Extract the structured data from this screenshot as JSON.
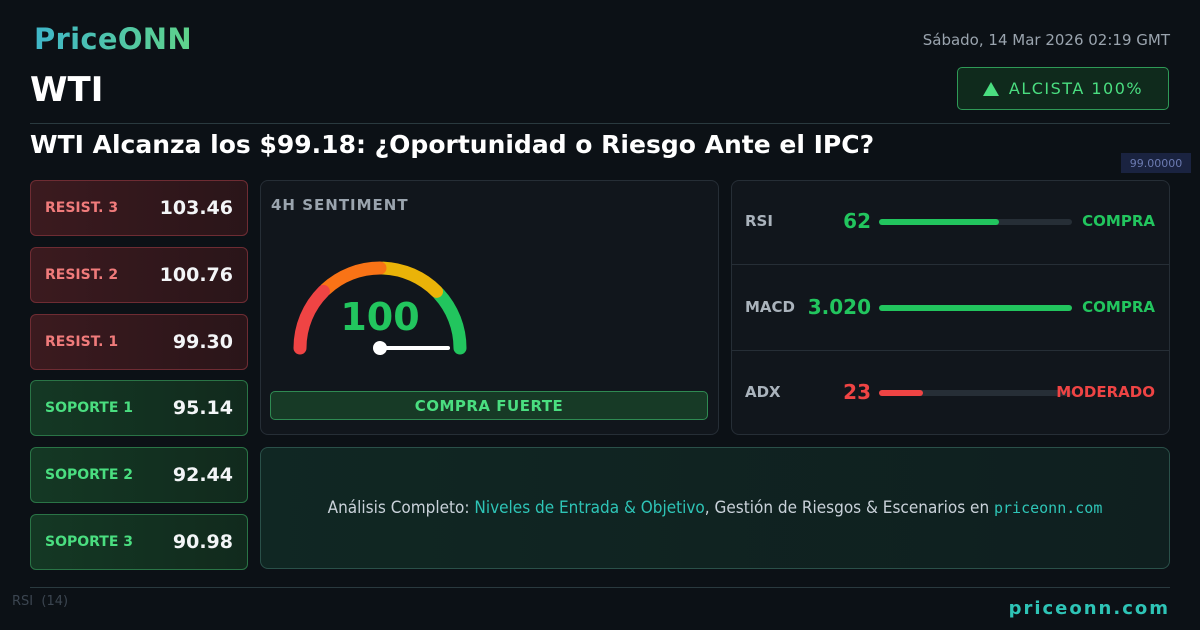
{
  "header": {
    "logo": "PriceONN",
    "datetime": "Sábado, 14 Mar 2026 02:19 GMT",
    "symbol": "WTI",
    "badge": "ALCISTA 100%"
  },
  "headline": "WTI Alcanza los $99.18: ¿Oportunidad o Riesgo Ante el IPC?",
  "background": {
    "price_tag": "99.00000",
    "rsi_label": "RSI",
    "rsi_period": "(14)"
  },
  "levels": [
    {
      "label": "RESIST. 3",
      "value": "103.46",
      "kind": "resistance"
    },
    {
      "label": "RESIST. 2",
      "value": "100.76",
      "kind": "resistance"
    },
    {
      "label": "RESIST. 1",
      "value": "99.30",
      "kind": "resistance"
    },
    {
      "label": "SOPORTE 1",
      "value": "95.14",
      "kind": "support"
    },
    {
      "label": "SOPORTE 2",
      "value": "92.44",
      "kind": "support"
    },
    {
      "label": "SOPORTE 3",
      "value": "90.98",
      "kind": "support"
    }
  ],
  "sentiment": {
    "title": "4H SENTIMENT",
    "value": 100,
    "range": [
      0,
      100
    ],
    "signal": "COMPRA FUERTE"
  },
  "indicators": {
    "range": [
      0,
      100
    ],
    "rows": [
      {
        "name": "RSI",
        "value": 62,
        "signal": "COMPRA",
        "color": "#22c55e"
      },
      {
        "name": "MACD",
        "value": "3.020",
        "signal": "COMPRA",
        "color": "#22c55e"
      },
      {
        "name": "ADX",
        "value": 23,
        "signal": "MODERADO",
        "color": "#ef4444"
      }
    ]
  },
  "cta": {
    "lead": "Análisis Completo: ",
    "highlight": "Niveles de Entrada & Objetivo",
    "middle": ", Gestión de Riesgos & Escenarios en ",
    "site": "priceonn.com"
  },
  "footer": "priceonn.com"
}
